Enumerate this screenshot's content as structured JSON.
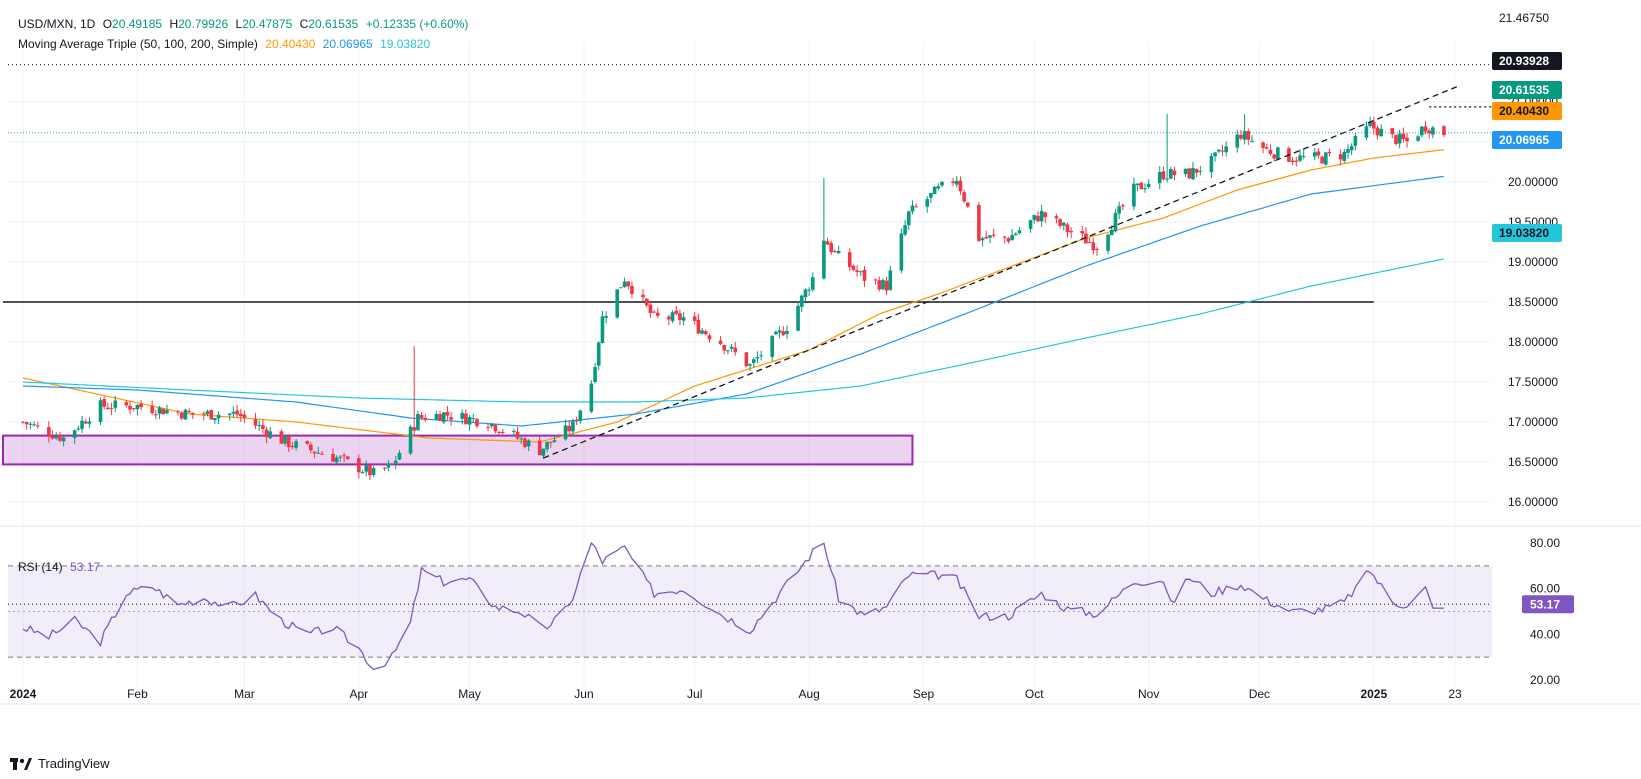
{
  "header": {
    "symbol": "USD/MXN, 1D",
    "o_label": "O",
    "o": "20.49185",
    "h_label": "H",
    "h": "20.79926",
    "l_label": "L",
    "l": "20.47875",
    "c_label": "C",
    "c": "20.61535",
    "change": "+0.12335 (+0.60%)",
    "ma_title": "Moving Average Triple (50, 100, 200, Simple)",
    "ma50": "20.40430",
    "ma100": "20.06965",
    "ma200": "19.03820"
  },
  "rsi_header": {
    "title": "RSI (14)",
    "value": "53.17"
  },
  "branding": {
    "text": "TradingView"
  },
  "colors": {
    "up": "#089981",
    "down": "#f23645",
    "ma50": "#ff9800",
    "ma100": "#2196f3",
    "ma200": "#26c6da",
    "rsi": "#7e57c2",
    "zone": "#9c27b0",
    "price_line": "#26a69a"
  },
  "chart_data": [
    {
      "type": "candlestick",
      "title": "USD/MXN, 1D",
      "ylim": [
        15.9,
        21.5
      ],
      "y_ticks": [
        "16.00000",
        "16.50000",
        "17.00000",
        "17.50000",
        "18.00000",
        "18.50000",
        "19.00000",
        "19.50000",
        "20.00000",
        "20.50000",
        "21.00000"
      ],
      "x_ticks": [
        "2024",
        "Feb",
        "Mar",
        "Apr",
        "May",
        "Jun",
        "Jul",
        "Aug",
        "Sep",
        "Oct",
        "Nov",
        "Dec",
        "2025",
        "23"
      ],
      "price_labels": [
        {
          "value": 21.4675,
          "text": "21.46750",
          "style": "plain"
        },
        {
          "value": 20.93928,
          "text": "20.93928",
          "style": "dark"
        },
        {
          "value": 20.61535,
          "text": "20.61535",
          "style": "up"
        },
        {
          "value": 20.4043,
          "text": "20.40430",
          "style": "ma50"
        },
        {
          "value": 20.06965,
          "text": "20.06965",
          "style": "ma100"
        },
        {
          "value": 19.0382,
          "text": "19.03820",
          "style": "ma200"
        }
      ],
      "anchors": [
        [
          "2024-01-01",
          17.0
        ],
        [
          "2024-01-12",
          16.8
        ],
        [
          "2024-01-22",
          17.2
        ],
        [
          "2024-02-01",
          17.2
        ],
        [
          "2024-02-15",
          17.1
        ],
        [
          "2024-02-28",
          17.1
        ],
        [
          "2024-03-12",
          16.75
        ],
        [
          "2024-03-26",
          16.55
        ],
        [
          "2024-04-05",
          16.35
        ],
        [
          "2024-04-10",
          16.45
        ],
        [
          "2024-04-17",
          17.05
        ],
        [
          "2024-04-24",
          17.1
        ],
        [
          "2024-05-06",
          17.0
        ],
        [
          "2024-05-20",
          16.65
        ],
        [
          "2024-05-29",
          16.95
        ],
        [
          "2024-06-03",
          17.5
        ],
        [
          "2024-06-06",
          18.3
        ],
        [
          "2024-06-12",
          18.8
        ],
        [
          "2024-06-20",
          18.3
        ],
        [
          "2024-06-28",
          18.3
        ],
        [
          "2024-07-08",
          18.0
        ],
        [
          "2024-07-16",
          17.7
        ],
        [
          "2024-07-26",
          18.2
        ],
        [
          "2024-08-02",
          18.8
        ],
        [
          "2024-08-05",
          19.3
        ],
        [
          "2024-08-08",
          19.1
        ],
        [
          "2024-08-16",
          18.8
        ],
        [
          "2024-08-22",
          18.7
        ],
        [
          "2024-08-28",
          19.6
        ],
        [
          "2024-09-05",
          19.9
        ],
        [
          "2024-09-10",
          20.05
        ],
        [
          "2024-09-16",
          19.3
        ],
        [
          "2024-09-24",
          19.3
        ],
        [
          "2024-10-03",
          19.6
        ],
        [
          "2024-10-10",
          19.4
        ],
        [
          "2024-10-18",
          19.2
        ],
        [
          "2024-10-28",
          19.9
        ],
        [
          "2024-11-05",
          20.1
        ],
        [
          "2024-11-12",
          20.1
        ],
        [
          "2024-11-18",
          20.25
        ],
        [
          "2024-11-26",
          20.6
        ],
        [
          "2024-12-03",
          20.4
        ],
        [
          "2024-12-10",
          20.3
        ],
        [
          "2024-12-18",
          20.3
        ],
        [
          "2024-12-24",
          20.35
        ],
        [
          "2024-12-31",
          20.7
        ],
        [
          "2025-01-06",
          20.55
        ],
        [
          "2025-01-10",
          20.5
        ],
        [
          "2025-01-15",
          20.7
        ],
        [
          "2025-01-20",
          20.61535
        ]
      ],
      "wick_spikes": [
        [
          "2024-04-16",
          17.95
        ],
        [
          "2024-08-05",
          20.05
        ],
        [
          "2024-11-06",
          20.85
        ],
        [
          "2024-11-27",
          20.85
        ]
      ],
      "sma": {
        "ma50": [
          [
            "2024-01-01",
            17.55
          ],
          [
            "2024-02-15",
            17.1
          ],
          [
            "2024-03-15",
            17.0
          ],
          [
            "2024-04-20",
            16.8
          ],
          [
            "2024-05-20",
            16.75
          ],
          [
            "2024-06-10",
            17.0
          ],
          [
            "2024-07-01",
            17.45
          ],
          [
            "2024-08-01",
            17.9
          ],
          [
            "2024-08-20",
            18.35
          ],
          [
            "2024-09-05",
            18.6
          ],
          [
            "2024-09-25",
            18.95
          ],
          [
            "2024-10-15",
            19.3
          ],
          [
            "2024-11-05",
            19.55
          ],
          [
            "2024-11-25",
            19.9
          ],
          [
            "2024-12-15",
            20.15
          ],
          [
            "2025-01-01",
            20.3
          ],
          [
            "2025-01-20",
            20.4043
          ]
        ],
        "ma100": [
          [
            "2024-01-01",
            17.45
          ],
          [
            "2024-02-01",
            17.4
          ],
          [
            "2024-03-15",
            17.25
          ],
          [
            "2024-04-15",
            17.05
          ],
          [
            "2024-05-15",
            16.95
          ],
          [
            "2024-06-15",
            17.1
          ],
          [
            "2024-07-15",
            17.35
          ],
          [
            "2024-08-15",
            17.85
          ],
          [
            "2024-09-15",
            18.4
          ],
          [
            "2024-10-15",
            18.95
          ],
          [
            "2024-11-15",
            19.45
          ],
          [
            "2024-12-15",
            19.85
          ],
          [
            "2025-01-20",
            20.06965
          ]
        ],
        "ma200": [
          [
            "2024-01-01",
            17.5
          ],
          [
            "2024-02-15",
            17.4
          ],
          [
            "2024-04-01",
            17.3
          ],
          [
            "2024-05-15",
            17.25
          ],
          [
            "2024-06-15",
            17.25
          ],
          [
            "2024-07-15",
            17.3
          ],
          [
            "2024-08-15",
            17.45
          ],
          [
            "2024-09-15",
            17.75
          ],
          [
            "2024-10-15",
            18.05
          ],
          [
            "2024-11-15",
            18.35
          ],
          [
            "2024-12-15",
            18.7
          ],
          [
            "2025-01-20",
            19.0382
          ]
        ]
      },
      "support_line": {
        "value": 18.5,
        "from": "2024-01-01",
        "to": "2025-01-01"
      },
      "trendline": {
        "from": [
          "2024-05-21",
          16.55
        ],
        "to": [
          "2025-01-24",
          21.2
        ]
      },
      "resistance_dotted": {
        "value": 20.93928,
        "from": "2025-01-16",
        "to": "2025-01-26"
      },
      "zone": {
        "from": "2024-01-01",
        "to": "2024-08-29",
        "low": 16.47,
        "high": 16.83
      }
    },
    {
      "type": "line",
      "title": "RSI (14)",
      "ylim": [
        20,
        80
      ],
      "y_ticks": [
        "20.00",
        "40.00",
        "60.00",
        "80.00"
      ],
      "bands": [
        30,
        70
      ],
      "midline": 50,
      "current": {
        "value": 53.17,
        "text": "53.17"
      },
      "anchors": [
        [
          "2024-01-01",
          43
        ],
        [
          "2024-01-08",
          39
        ],
        [
          "2024-01-15",
          46
        ],
        [
          "2024-01-22",
          37
        ],
        [
          "2024-01-29",
          58
        ],
        [
          "2024-02-05",
          61
        ],
        [
          "2024-02-12",
          53
        ],
        [
          "2024-02-19",
          56
        ],
        [
          "2024-02-26",
          52
        ],
        [
          "2024-03-04",
          57
        ],
        [
          "2024-03-11",
          46
        ],
        [
          "2024-03-18",
          40
        ],
        [
          "2024-03-25",
          43
        ],
        [
          "2024-04-01",
          34
        ],
        [
          "2024-04-05",
          25
        ],
        [
          "2024-04-10",
          30
        ],
        [
          "2024-04-15",
          45
        ],
        [
          "2024-04-18",
          68
        ],
        [
          "2024-04-24",
          63
        ],
        [
          "2024-05-01",
          64
        ],
        [
          "2024-05-08",
          52
        ],
        [
          "2024-05-15",
          50
        ],
        [
          "2024-05-21",
          42
        ],
        [
          "2024-05-28",
          52
        ],
        [
          "2024-06-03",
          80
        ],
        [
          "2024-06-06",
          72
        ],
        [
          "2024-06-12",
          78
        ],
        [
          "2024-06-20",
          58
        ],
        [
          "2024-06-28",
          60
        ],
        [
          "2024-07-08",
          49
        ],
        [
          "2024-07-16",
          42
        ],
        [
          "2024-07-26",
          62
        ],
        [
          "2024-08-02",
          76
        ],
        [
          "2024-08-05",
          80
        ],
        [
          "2024-08-09",
          56
        ],
        [
          "2024-08-16",
          48
        ],
        [
          "2024-08-22",
          52
        ],
        [
          "2024-08-28",
          66
        ],
        [
          "2024-09-05",
          66
        ],
        [
          "2024-09-10",
          64
        ],
        [
          "2024-09-16",
          48
        ],
        [
          "2024-09-24",
          48
        ],
        [
          "2024-10-03",
          58
        ],
        [
          "2024-10-10",
          51
        ],
        [
          "2024-10-18",
          49
        ],
        [
          "2024-10-28",
          63
        ],
        [
          "2024-11-05",
          64
        ],
        [
          "2024-11-07",
          53
        ],
        [
          "2024-11-12",
          65
        ],
        [
          "2024-11-18",
          58
        ],
        [
          "2024-11-26",
          62
        ],
        [
          "2024-12-03",
          55
        ],
        [
          "2024-12-10",
          50
        ],
        [
          "2024-12-18",
          51
        ],
        [
          "2024-12-24",
          54
        ],
        [
          "2024-12-31",
          68
        ],
        [
          "2025-01-06",
          54
        ],
        [
          "2025-01-10",
          53
        ],
        [
          "2025-01-15",
          60
        ],
        [
          "2025-01-17",
          51
        ],
        [
          "2025-01-20",
          53.17
        ]
      ]
    }
  ]
}
